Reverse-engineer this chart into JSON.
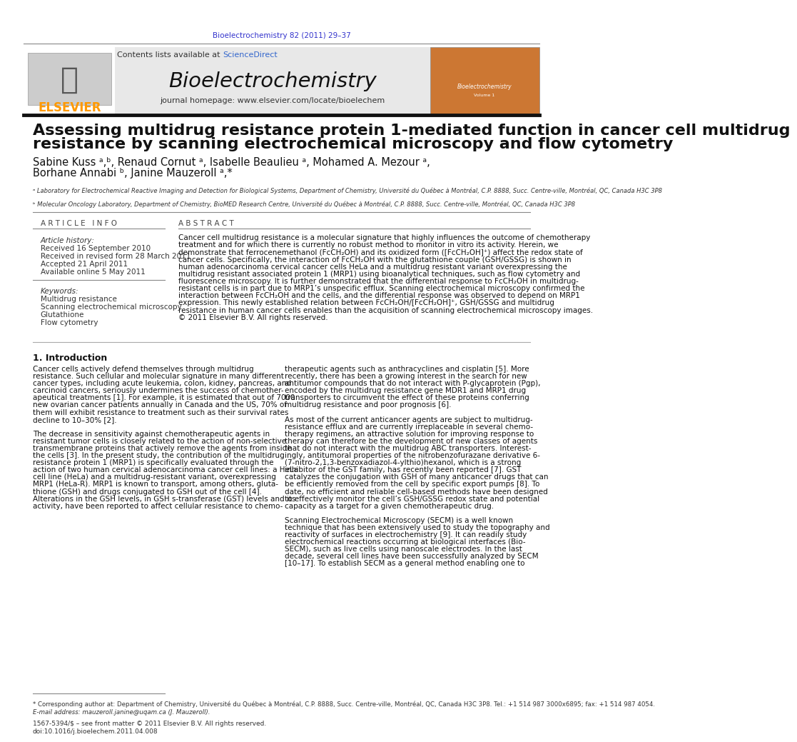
{
  "page_bg": "#ffffff",
  "top_journal_ref": "Bioelectrochemistry 82 (2011) 29–37",
  "top_journal_ref_color": "#3333cc",
  "header_bg": "#e8e8e8",
  "header_journal_name": "Bioelectrochemistry",
  "header_contents_text": "Contents lists available at ",
  "header_sciencedirect": "ScienceDirect",
  "header_sciencedirect_color": "#3366cc",
  "header_homepage": "journal homepage: www.elsevier.com/locate/bioelechem",
  "elsevier_color": "#ff9900",
  "article_title_line1": "Assessing multidrug resistance protein 1-mediated function in cancer cell multidrug",
  "article_title_line2": "resistance by scanning electrochemical microscopy and flow cytometry",
  "authors": "Sabine Kuss ᵃ,ᵇ, Renaud Cornut ᵃ, Isabelle Beaulieu ᵃ, Mohamed A. Mezour ᵃ,",
  "authors2": "Borhane Annabi ᵇ, Janine Mauzeroll ᵃ,*",
  "affil_a": "ᵃ Laboratory for Electrochemical Reactive Imaging and Detection for Biological Systems, Department of Chemistry, Université du Québec à Montréal, C.P. 8888, Succ. Centre-ville, Montréal, QC, Canada H3C 3P8",
  "affil_b": "ᵇ Molecular Oncology Laboratory, Department of Chemistry, BioMED Research Centre, Université du Québec à Montréal, C.P. 8888, Succ. Centre-ville, Montréal, QC, Canada H3C 3P8",
  "article_info_title": "A R T I C L E   I N F O",
  "abstract_title": "A B S T R A C T",
  "article_history_label": "Article history:",
  "received": "Received 16 September 2010",
  "revised": "Received in revised form 28 March 2011",
  "accepted": "Accepted 21 April 2011",
  "available": "Available online 5 May 2011",
  "keywords_label": "Keywords:",
  "keyword1": "Multidrug resistance",
  "keyword2": "Scanning electrochemical microscopy",
  "keyword3": "Glutathione",
  "keyword4": "Flow cytometry",
  "abstract_lines": [
    "Cancer cell multidrug resistance is a molecular signature that highly influences the outcome of chemotherapy",
    "treatment and for which there is currently no robust method to monitor in vitro its activity. Herein, we",
    "demonstrate that ferrocenemethanol (FcCH₂OH) and its oxidized form ([FcCH₂OH]⁺) affect the redox state of",
    "cancer cells. Specifically, the interaction of FcCH₂OH with the glutathione couple (GSH/GSSG) is shown in",
    "human adenocarcinoma cervical cancer cells HeLa and a multidrug resistant variant overexpressing the",
    "multidrug resistant associated protein 1 (MRP1) using bioanalytical techniques, such as flow cytometry and",
    "fluorescence microscopy. It is further demonstrated that the differential response to FcCH₂OH in multidrug-",
    "resistant cells is in part due to MRP1’s unspecific efflux. Scanning electrochemical microscopy confirmed the",
    "interaction between FcCH₂OH and the cells, and the differential response was observed to depend on MRP1",
    "expression. This newly established relation between FcCH₂OH/[FcCH₂OH]⁺, GSH/GSSG and multidrug",
    "resistance in human cancer cells enables than the acquisition of scanning electrochemical microscopy images.",
    "© 2011 Elsevier B.V. All rights reserved."
  ],
  "intro_title": "1. Introduction",
  "col1_lines": [
    "Cancer cells actively defend themselves through multidrug",
    "resistance. Such cellular and molecular signature in many different",
    "cancer types, including acute leukemia, colon, kidney, pancreas, and",
    "carcinoid cancers, seriously undermines the success of chemother-",
    "apeutical treatments [1]. For example, it is estimated that out of 7000",
    "new ovarian cancer patients annually in Canada and the US, 70% of",
    "them will exhibit resistance to treatment such as their survival rates",
    "decline to 10–30% [2].",
    "",
    "The decrease in sensitivity against chemotherapeutic agents in",
    "resistant tumor cells is closely related to the action of non-selective",
    "transmembrane proteins that actively remove the agents from inside",
    "the cells [3]. In the present study, the contribution of the multidrug",
    "resistance protein 1 (MRP1) is specifically evaluated through the",
    "action of two human cervical adenocarcinoma cancer cell lines: a HeLa",
    "cell line (HeLa) and a multidrug-resistant variant, overexpressing",
    "MRP1 (HeLa-R). MRP1 is known to transport, among others, gluta-",
    "thione (GSH) and drugs conjugated to GSH out of the cell [4].",
    "Alterations in the GSH levels, in GSH s-transferase (GST) levels and its",
    "activity, have been reported to affect cellular resistance to chemo-"
  ],
  "col2_lines": [
    "therapeutic agents such as anthracyclines and cisplatin [5]. More",
    "recently, there has been a growing interest in the search for new",
    "antitumor compounds that do not interact with P-glycaprotein (Pgp),",
    "encoded by the multidrug resistance gene MDR1 and MRP1 drug",
    "transporters to circumvent the effect of these proteins conferring",
    "multidrug resistance and poor prognosis [6].",
    "",
    "As most of the current anticancer agents are subject to multidrug-",
    "resistance efflux and are currently irreplaceable in several chemo-",
    "therapy regimens, an attractive solution for improving response to",
    "therapy can therefore be the development of new classes of agents",
    "that do not interact with the multidrug ABC transporters. Interest-",
    "ingly, antitumoral properties of the nitrobenzofurazane derivative 6-",
    "(7-nitro-2,1,3-benzoxadiazol-4-ylthio)hexanol, which is a strong",
    "inhibitor of the GST family, has recently been reported [7]. GST",
    "catalyzes the conjugation with GSH of many anticancer drugs that can",
    "be efficiently removed from the cell by specific export pumps [8]. To",
    "date, no efficient and reliable cell-based methods have been designed",
    "to effectively monitor the cell’s GSH/GSSG redox state and potential",
    "capacity as a target for a given chemotherapeutic drug.",
    "",
    "Scanning Electrochemical Microscopy (SECM) is a well known",
    "technique that has been extensively used to study the topography and",
    "reactivity of surfaces in electrochemistry [9]. It can readily study",
    "electrochemical reactions occurring at biological interfaces (Bio-",
    "SECM), such as live cells using nanoscale electrodes. In the last",
    "decade, several cell lines have been successfully analyzed by SECM",
    "[10–17]. To establish SECM as a general method enabling one to"
  ],
  "footnote_star": "* Corresponding author at: Department of Chemistry, Université du Québec à Montréal, C.P. 8888, Succ. Centre-ville, Montréal, QC, Canada H3C 3P8. Tel.: +1 514 987 3000x6895; fax: +1 514 987 4054.",
  "footnote_email": "E-mail address: mauzeroll.janine@uqam.ca (J. Mauzeroll).",
  "bottom_issn": "1567-5394/$ – see front matter © 2011 Elsevier B.V. All rights reserved.",
  "bottom_doi": "doi:10.1016/j.bioelechem.2011.04.008"
}
